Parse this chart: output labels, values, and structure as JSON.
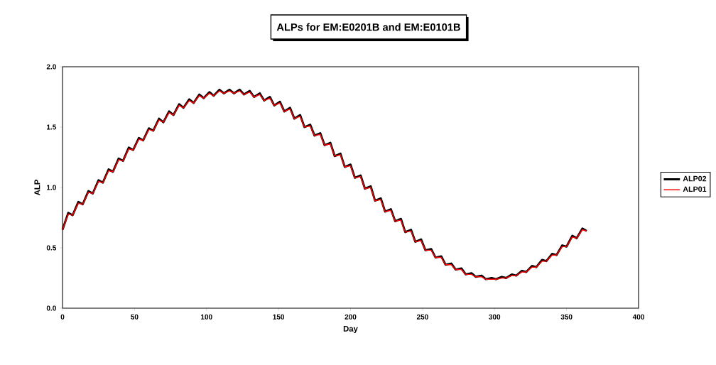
{
  "chart_data": {
    "type": "line",
    "title": "ALPs for EM:E0201B and EM:E0101B",
    "xlabel": "Day",
    "ylabel": "ALP",
    "x": [
      0,
      4,
      7,
      11,
      14,
      18,
      21,
      25,
      28,
      32,
      35,
      39,
      42,
      46,
      49,
      53,
      56,
      60,
      63,
      67,
      70,
      74,
      77,
      81,
      84,
      88,
      91,
      95,
      98,
      102,
      105,
      109,
      112,
      116,
      119,
      123,
      126,
      130,
      133,
      137,
      140,
      144,
      147,
      151,
      154,
      158,
      161,
      165,
      168,
      172,
      175,
      179,
      182,
      186,
      189,
      193,
      196,
      200,
      203,
      207,
      210,
      214,
      217,
      221,
      224,
      228,
      231,
      235,
      238,
      242,
      245,
      249,
      252,
      256,
      259,
      263,
      266,
      270,
      273,
      277,
      280,
      284,
      287,
      291,
      294,
      298,
      301,
      305,
      308,
      312,
      315,
      319,
      322,
      326,
      329,
      333,
      336,
      340,
      343,
      347,
      350,
      354,
      357,
      361,
      364
    ],
    "series": [
      {
        "name": "ALP02",
        "color": "#000000",
        "values": [
          0.65,
          0.79,
          0.77,
          0.88,
          0.86,
          0.97,
          0.95,
          1.06,
          1.04,
          1.15,
          1.13,
          1.24,
          1.22,
          1.33,
          1.31,
          1.41,
          1.39,
          1.49,
          1.47,
          1.57,
          1.54,
          1.63,
          1.6,
          1.69,
          1.66,
          1.73,
          1.7,
          1.77,
          1.74,
          1.79,
          1.76,
          1.81,
          1.78,
          1.81,
          1.78,
          1.81,
          1.77,
          1.8,
          1.75,
          1.78,
          1.72,
          1.75,
          1.68,
          1.71,
          1.63,
          1.66,
          1.57,
          1.6,
          1.5,
          1.52,
          1.43,
          1.45,
          1.35,
          1.37,
          1.26,
          1.28,
          1.17,
          1.19,
          1.08,
          1.1,
          0.99,
          1.01,
          0.89,
          0.91,
          0.8,
          0.82,
          0.72,
          0.74,
          0.63,
          0.65,
          0.55,
          0.57,
          0.48,
          0.49,
          0.42,
          0.43,
          0.36,
          0.37,
          0.32,
          0.33,
          0.28,
          0.29,
          0.26,
          0.27,
          0.24,
          0.25,
          0.24,
          0.26,
          0.25,
          0.28,
          0.27,
          0.31,
          0.3,
          0.35,
          0.34,
          0.4,
          0.39,
          0.45,
          0.44,
          0.52,
          0.51,
          0.6,
          0.58,
          0.66,
          0.64
        ]
      },
      {
        "name": "ALP01",
        "color": "#ff0000",
        "values": [
          0.65,
          0.78,
          0.77,
          0.87,
          0.86,
          0.96,
          0.95,
          1.05,
          1.04,
          1.14,
          1.13,
          1.23,
          1.22,
          1.32,
          1.31,
          1.4,
          1.39,
          1.48,
          1.47,
          1.56,
          1.54,
          1.62,
          1.6,
          1.68,
          1.66,
          1.72,
          1.7,
          1.76,
          1.74,
          1.78,
          1.76,
          1.8,
          1.78,
          1.8,
          1.78,
          1.8,
          1.77,
          1.79,
          1.75,
          1.77,
          1.72,
          1.74,
          1.68,
          1.7,
          1.63,
          1.65,
          1.57,
          1.59,
          1.5,
          1.51,
          1.43,
          1.44,
          1.35,
          1.36,
          1.26,
          1.27,
          1.17,
          1.18,
          1.08,
          1.09,
          0.99,
          1.0,
          0.89,
          0.9,
          0.8,
          0.81,
          0.72,
          0.73,
          0.63,
          0.64,
          0.55,
          0.56,
          0.48,
          0.48,
          0.42,
          0.42,
          0.36,
          0.36,
          0.32,
          0.32,
          0.28,
          0.28,
          0.26,
          0.26,
          0.24,
          0.24,
          0.24,
          0.25,
          0.25,
          0.27,
          0.27,
          0.3,
          0.3,
          0.34,
          0.34,
          0.39,
          0.39,
          0.44,
          0.44,
          0.51,
          0.51,
          0.59,
          0.58,
          0.65,
          0.64
        ]
      }
    ],
    "xlim": [
      0,
      400
    ],
    "xticks": [
      0,
      50,
      100,
      150,
      200,
      250,
      300,
      350,
      400
    ],
    "ylim": [
      0,
      2
    ],
    "yticks": [
      {
        "value": 0,
        "label": "0.0"
      },
      {
        "value": 0.5,
        "label": "0.5"
      },
      {
        "value": 1,
        "label": "1.0"
      },
      {
        "value": 1.5,
        "label": "1.5"
      },
      {
        "value": 2,
        "label": "2.0"
      }
    ],
    "legend": "right",
    "marker": "none",
    "line_style": "solid"
  }
}
